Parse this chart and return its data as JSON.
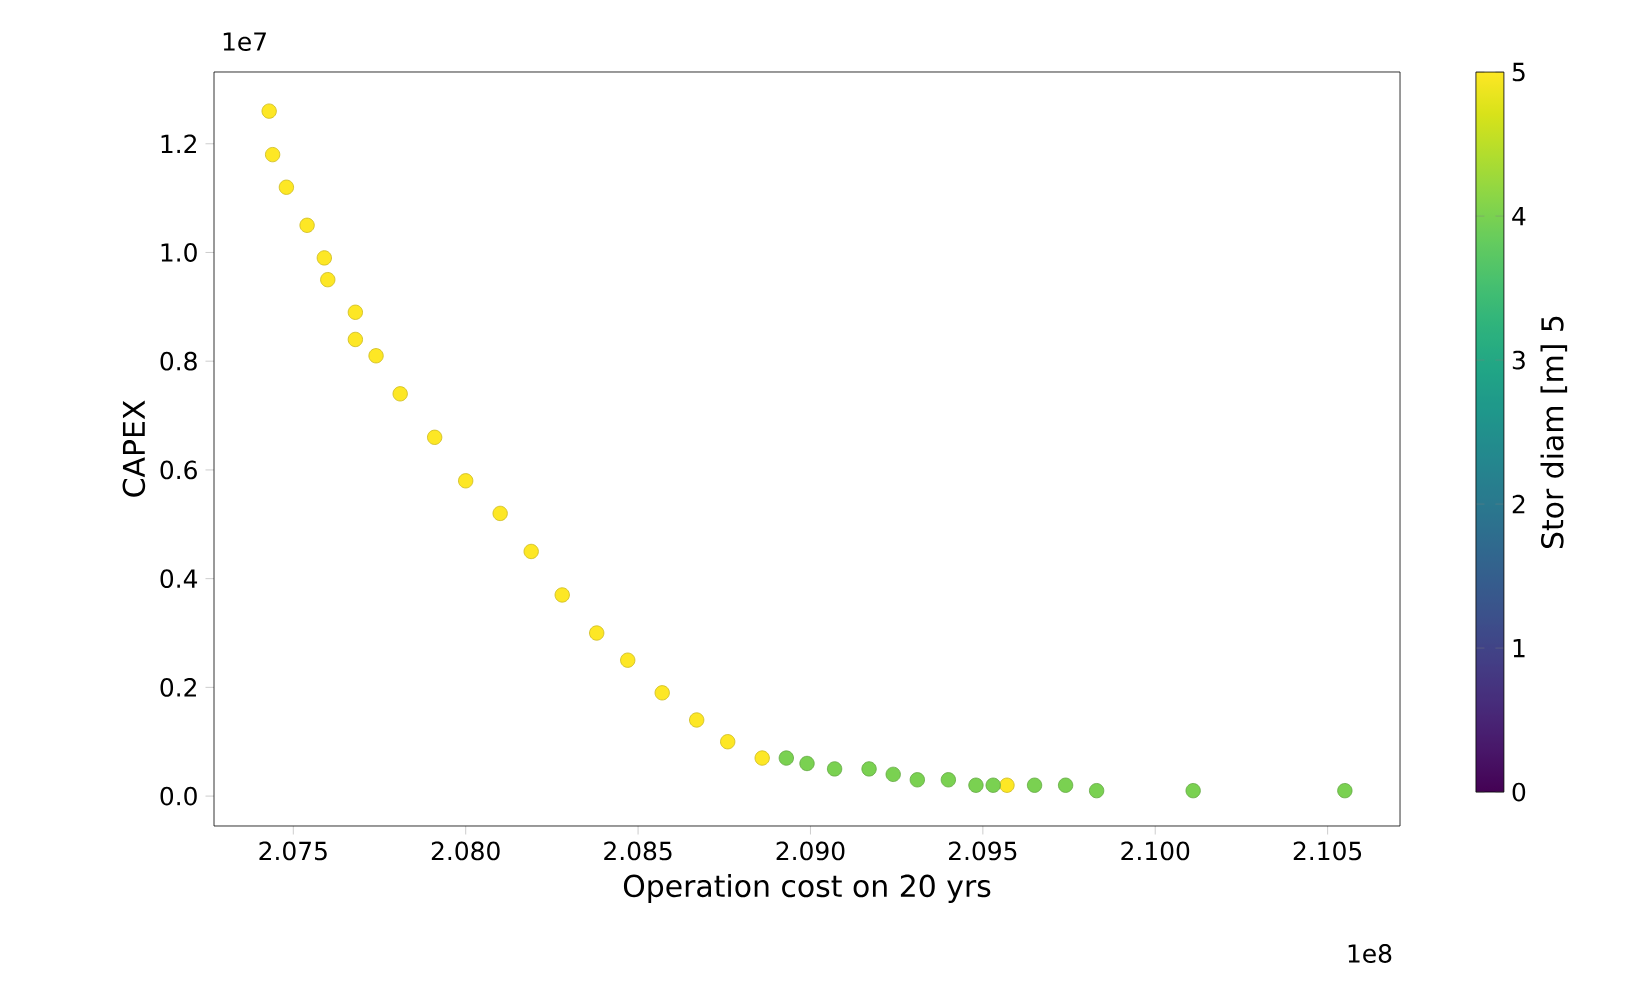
{
  "chart_data": {
    "type": "scatter",
    "xlabel": "Operation cost on 20 yrs",
    "ylabel": "CAPEX",
    "clabel": "Stor diam [m] 5",
    "annotations": [
      "1e7",
      "1e8"
    ],
    "marker": "circle",
    "x": [
      2.0743,
      2.0744,
      2.0748,
      2.0754,
      2.0759,
      2.076,
      2.0768,
      2.0768,
      2.0774,
      2.0781,
      2.0791,
      2.08,
      2.081,
      2.0819,
      2.0828,
      2.0838,
      2.0847,
      2.0857,
      2.0867,
      2.0876,
      2.0886,
      2.0957,
      2.0893,
      2.0899,
      2.0907,
      2.0917,
      2.0924,
      2.0931,
      2.094,
      2.0948,
      2.0953,
      2.0965,
      2.0974,
      2.0983,
      2.1011,
      2.1055
    ],
    "values": [
      1.26,
      1.18,
      1.12,
      1.05,
      0.99,
      0.95,
      0.89,
      0.84,
      0.81,
      0.74,
      0.66,
      0.58,
      0.52,
      0.45,
      0.37,
      0.3,
      0.25,
      0.19,
      0.14,
      0.1,
      0.07,
      0.02,
      0.07,
      0.06,
      0.05,
      0.05,
      0.04,
      0.03,
      0.03,
      0.02,
      0.02,
      0.02,
      0.02,
      0.01,
      0.01,
      0.01
    ],
    "cvalues": [
      5,
      5,
      5,
      5,
      5,
      5,
      5,
      5,
      5,
      5,
      5,
      5,
      5,
      5,
      5,
      5,
      5,
      5,
      5,
      5,
      5,
      5,
      4,
      4,
      4,
      4,
      4,
      4,
      4,
      4,
      4,
      4,
      4,
      4,
      4,
      4
    ],
    "clim": [
      0,
      5
    ],
    "cticks": [
      0,
      1,
      2,
      3,
      4,
      5
    ],
    "xlim": [
      2.0727,
      2.1071
    ],
    "ylim": [
      -0.055,
      1.332
    ],
    "xticks": [
      {
        "value": 2.075,
        "label": "2.075"
      },
      {
        "value": 2.08,
        "label": "2.080"
      },
      {
        "value": 2.085,
        "label": "2.085"
      },
      {
        "value": 2.09,
        "label": "2.090"
      },
      {
        "value": 2.095,
        "label": "2.095"
      },
      {
        "value": 2.1,
        "label": "2.100"
      },
      {
        "value": 2.105,
        "label": "2.105"
      }
    ],
    "yticks": [
      {
        "value": 0,
        "label": "0.0"
      },
      {
        "value": 0.2,
        "label": "0.2"
      },
      {
        "value": 0.4,
        "label": "0.4"
      },
      {
        "value": 0.6,
        "label": "0.6"
      },
      {
        "value": 0.8,
        "label": "0.8"
      },
      {
        "value": 1.0,
        "label": "1.0"
      },
      {
        "value": 1.2,
        "label": "1.2"
      }
    ]
  }
}
